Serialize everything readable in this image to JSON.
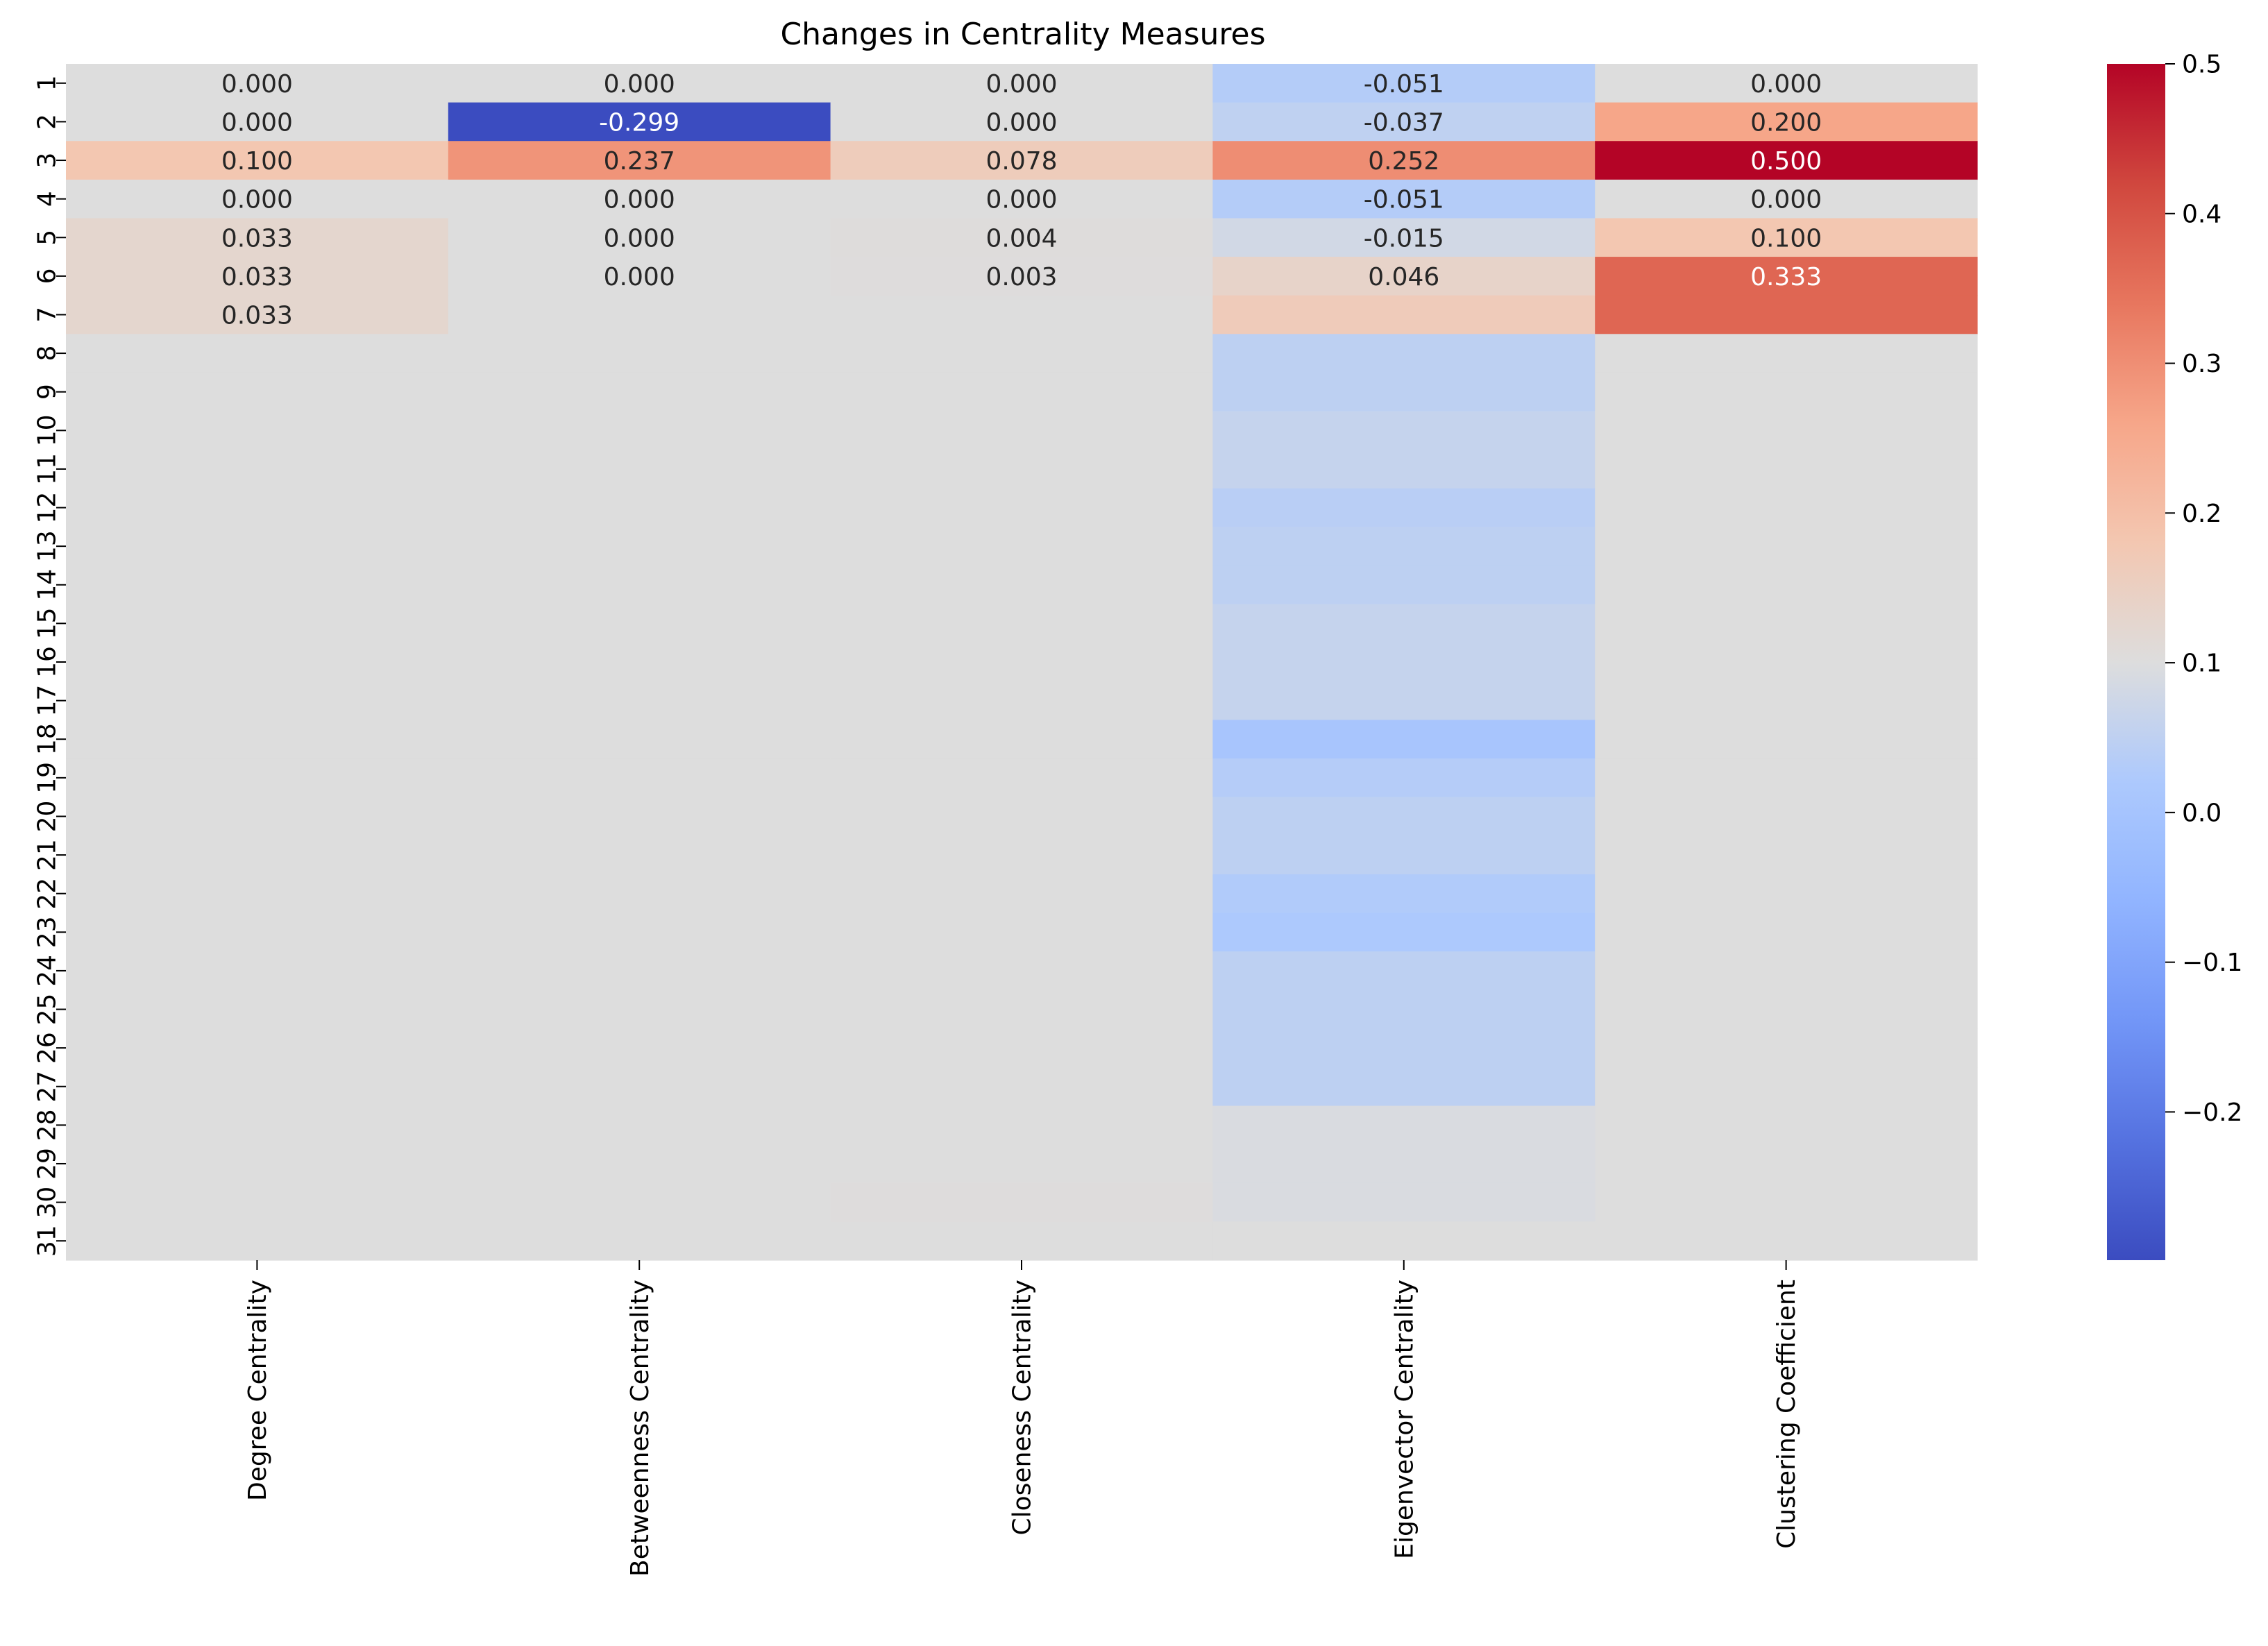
{
  "chart_data": {
    "type": "heatmap",
    "title": "Changes in Centrality Measures",
    "columns": [
      "Degree Centrality",
      "Betweenness Centrality",
      "Closeness Centrality",
      "Eigenvector Centrality",
      "Clustering Coefficient"
    ],
    "rows": [
      "1",
      "2",
      "3",
      "4",
      "5",
      "6",
      "7",
      "8",
      "9",
      "10",
      "11",
      "12",
      "13",
      "14",
      "15",
      "16",
      "17",
      "18",
      "19",
      "20",
      "21",
      "22",
      "23",
      "24",
      "25",
      "26",
      "27",
      "28",
      "29",
      "30",
      "31"
    ],
    "values": [
      [
        0.0,
        0.0,
        0.0,
        -0.051,
        0.0
      ],
      [
        0.0,
        -0.299,
        0.0,
        -0.037,
        0.2
      ],
      [
        0.1,
        0.237,
        0.078,
        0.252,
        0.5
      ],
      [
        0.0,
        0.0,
        0.0,
        -0.051,
        0.0
      ],
      [
        0.033,
        0.0,
        0.004,
        -0.015,
        0.1
      ],
      [
        0.033,
        0.0,
        0.003,
        0.046,
        0.333
      ],
      [
        0.033,
        0.0,
        0.0,
        0.08,
        0.333
      ],
      [
        0.0,
        0.0,
        0.0,
        -0.04,
        0.0
      ],
      [
        0.0,
        0.0,
        0.0,
        -0.04,
        0.0
      ],
      [
        0.0,
        0.0,
        0.0,
        -0.03,
        0.0
      ],
      [
        0.0,
        0.0,
        0.0,
        -0.03,
        0.0
      ],
      [
        0.0,
        0.0,
        0.0,
        -0.045,
        0.0
      ],
      [
        0.0,
        0.0,
        0.0,
        -0.04,
        0.0
      ],
      [
        0.0,
        0.0,
        0.0,
        -0.04,
        0.0
      ],
      [
        0.0,
        0.0,
        0.0,
        -0.03,
        0.0
      ],
      [
        0.0,
        0.0,
        0.0,
        -0.03,
        0.0
      ],
      [
        0.0,
        0.0,
        0.0,
        -0.03,
        0.0
      ],
      [
        0.0,
        0.0,
        0.0,
        -0.07,
        0.0
      ],
      [
        0.0,
        0.0,
        0.0,
        -0.05,
        0.0
      ],
      [
        0.0,
        0.0,
        0.0,
        -0.04,
        0.0
      ],
      [
        0.0,
        0.0,
        0.0,
        -0.04,
        0.0
      ],
      [
        0.0,
        0.0,
        0.0,
        -0.055,
        0.0
      ],
      [
        0.0,
        0.0,
        0.0,
        -0.06,
        0.0
      ],
      [
        0.0,
        0.0,
        0.0,
        -0.04,
        0.0
      ],
      [
        0.0,
        0.0,
        0.0,
        -0.04,
        0.0
      ],
      [
        0.0,
        0.0,
        0.0,
        -0.04,
        0.0
      ],
      [
        0.0,
        0.0,
        0.0,
        -0.04,
        0.0
      ],
      [
        0.0,
        0.0,
        0.0,
        -0.005,
        0.0
      ],
      [
        0.0,
        0.0,
        0.0,
        -0.005,
        0.0
      ],
      [
        0.0,
        0.0,
        0.003,
        -0.005,
        0.0
      ],
      [
        0.0,
        0.0,
        0.0,
        0.0,
        0.0
      ]
    ],
    "annotated_rows": 7,
    "annotations": [
      [
        "0.000",
        "0.000",
        "0.000",
        "-0.051",
        "0.000"
      ],
      [
        "0.000",
        "-0.299",
        "0.000",
        "-0.037",
        "0.200"
      ],
      [
        "0.100",
        "0.237",
        "0.078",
        "0.252",
        "0.500"
      ],
      [
        "0.000",
        "0.000",
        "0.000",
        "-0.051",
        "0.000"
      ],
      [
        "0.033",
        "0.000",
        "0.004",
        "-0.015",
        "0.100"
      ],
      [
        "0.033",
        "0.000",
        "0.003",
        "0.046",
        "0.333"
      ],
      [
        "0.033",
        "",
        "",
        "",
        ""
      ]
    ],
    "colormap": "coolwarm",
    "vmin": -0.299,
    "vmax": 0.5,
    "colorbar_ticks": [
      -0.2,
      -0.1,
      0.0,
      0.1,
      0.2,
      0.3,
      0.4,
      0.5
    ],
    "colorbar_tick_labels": [
      "−0.2",
      "−0.1",
      "0.0",
      "0.1",
      "0.2",
      "0.3",
      "0.4",
      "0.5"
    ],
    "xlabel": "",
    "ylabel": "",
    "grid": false,
    "legend": "colorbar-right"
  }
}
